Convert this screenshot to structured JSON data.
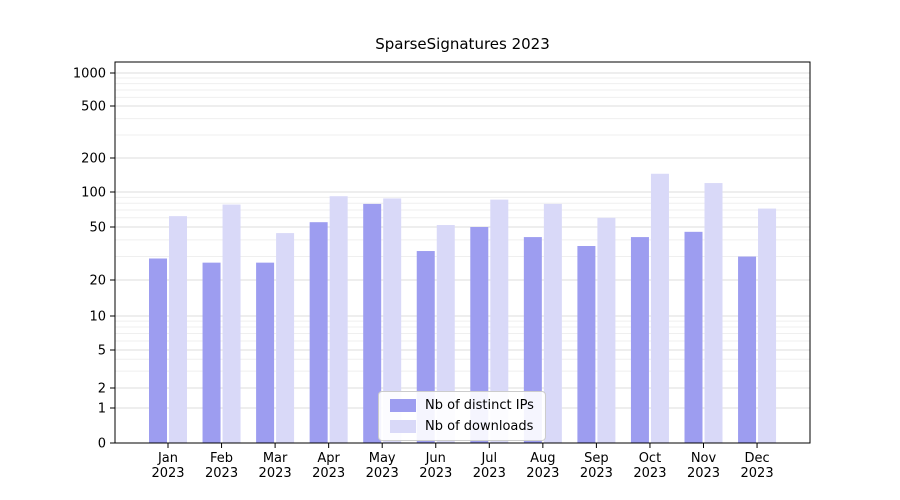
{
  "chart_data": {
    "type": "bar",
    "title": "SparseSignatures 2023",
    "categories": [
      "Jan",
      "Feb",
      "Mar",
      "Apr",
      "May",
      "Jun",
      "Jul",
      "Aug",
      "Sep",
      "Oct",
      "Nov",
      "Dec"
    ],
    "category_year": "2023",
    "series": [
      {
        "name": "Nb of distinct IPs",
        "color": "#9d9df0",
        "values": [
          29,
          27,
          27,
          55,
          79,
          33,
          50,
          42,
          36,
          42,
          46,
          30
        ]
      },
      {
        "name": "Nb of downloads",
        "color": "#d9d9f8",
        "values": [
          62,
          78,
          45,
          92,
          88,
          52,
          86,
          79,
          60,
          145,
          120,
          72
        ]
      }
    ],
    "yticks": [
      0,
      1,
      2,
      5,
      10,
      20,
      50,
      100,
      200,
      500,
      1000
    ],
    "yscale": "symlog",
    "ylim": [
      0,
      1000
    ],
    "grid": true,
    "legend_position": "lower center"
  }
}
